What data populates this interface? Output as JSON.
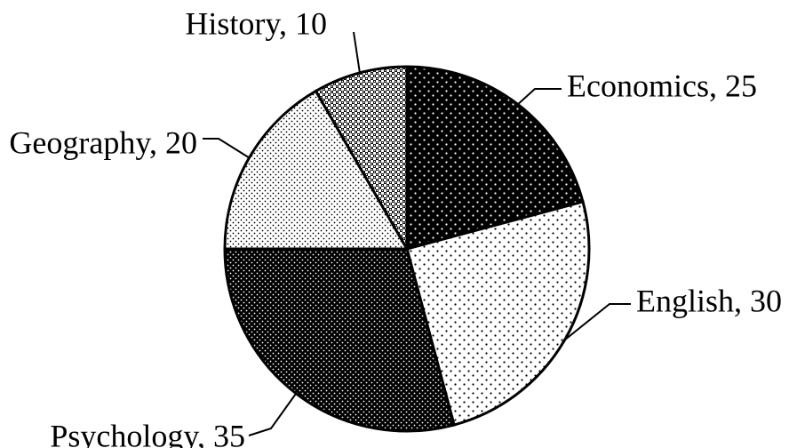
{
  "chart_data": {
    "type": "pie",
    "slices": [
      {
        "label": "Economics",
        "value": 25,
        "pattern": "dots-white-on-black"
      },
      {
        "label": "English",
        "value": 30,
        "pattern": "sparse-dots"
      },
      {
        "label": "Psychology",
        "value": 35,
        "pattern": "dense-dark-dots"
      },
      {
        "label": "Geography",
        "value": 20,
        "pattern": "fine-dots"
      },
      {
        "label": "History",
        "value": 10,
        "pattern": "checker-dots"
      }
    ],
    "start_angle_deg": 0,
    "direction": "clockwise",
    "legend": "none",
    "data_labels": "category, value",
    "colors": {
      "stroke": "#000000",
      "background": "#ffffff"
    }
  }
}
